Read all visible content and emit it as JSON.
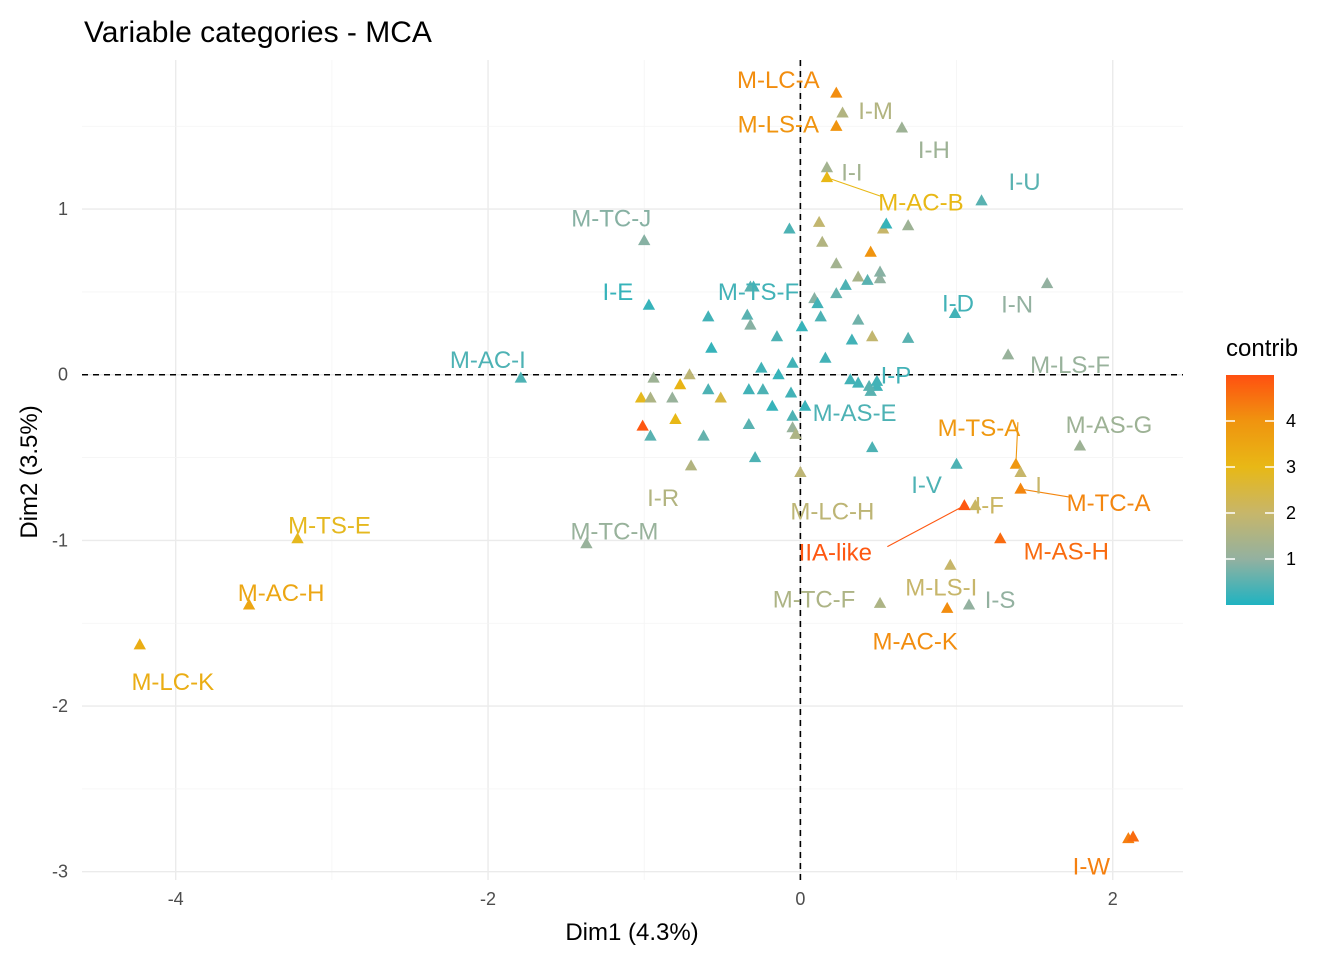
{
  "chart_data": {
    "type": "scatter",
    "title": "Variable categories - MCA",
    "xlabel": "Dim1 (4.3%)",
    "ylabel": "Dim2 (3.5%)",
    "xlim": [
      -4.6,
      2.45
    ],
    "ylim": [
      -3.05,
      1.9
    ],
    "xticks": [
      -4,
      -2,
      0,
      2
    ],
    "yticks": [
      -3,
      -2,
      -1,
      0,
      1
    ],
    "grid": true,
    "reference_lines": [
      0,
      0
    ],
    "marker": "triangle",
    "legend": {
      "title": "contrib",
      "position": "right",
      "ticks": [
        1,
        2,
        3,
        4
      ],
      "range": [
        0,
        5
      ],
      "colors": [
        "#1fb3c1",
        "#93b1a0",
        "#c7b66a",
        "#e8b816",
        "#f0940f",
        "#ff5011"
      ]
    },
    "points": [
      {
        "label": "M-LC-A",
        "x": 0.23,
        "y": 1.7,
        "contrib": 4.1
      },
      {
        "label": "I-M",
        "x": 0.27,
        "y": 1.58,
        "contrib": 1.6
      },
      {
        "label": "M-LS-A",
        "x": 0.23,
        "y": 1.5,
        "contrib": 4.0
      },
      {
        "label": "I-H",
        "x": 0.65,
        "y": 1.49,
        "contrib": 1.2
      },
      {
        "label": "I-I",
        "x": 0.17,
        "y": 1.25,
        "contrib": 1.3
      },
      {
        "label": "M-AC-B",
        "x": 0.17,
        "y": 1.19,
        "contrib": 3.0
      },
      {
        "label": "I-U",
        "x": 1.16,
        "y": 1.05,
        "contrib": 0.5
      },
      {
        "label": "M-TC-J",
        "x": -1.0,
        "y": 0.81,
        "contrib": 0.9
      },
      {
        "label": "M-TS-F",
        "x": -0.3,
        "y": 0.53,
        "contrib": 0.3
      },
      {
        "label": "I-E",
        "x": -0.97,
        "y": 0.42,
        "contrib": 0.2
      },
      {
        "label": "I-D",
        "x": 0.99,
        "y": 0.37,
        "contrib": 0.3
      },
      {
        "label": "I-N",
        "x": 1.58,
        "y": 0.55,
        "contrib": 1.0
      },
      {
        "label": "I-P",
        "x": 0.49,
        "y": -0.07,
        "contrib": 0.3
      },
      {
        "label": "M-AC-I",
        "x": -1.79,
        "y": -0.02,
        "contrib": 0.4
      },
      {
        "label": "M-LS-F",
        "x": 1.33,
        "y": 0.12,
        "contrib": 1.1
      },
      {
        "label": "M-AS-E",
        "x": -0.05,
        "y": -0.25,
        "contrib": 0.4
      },
      {
        "label": "M-TS-A",
        "x": 1.38,
        "y": -0.54,
        "contrib": 3.9
      },
      {
        "label": "M-AS-G",
        "x": 1.79,
        "y": -0.43,
        "contrib": 1.2
      },
      {
        "label": "I",
        "x": 1.41,
        "y": -0.59,
        "contrib": 2.0
      },
      {
        "label": "M-TC-A",
        "x": 1.41,
        "y": -0.69,
        "contrib": 4.2
      },
      {
        "label": "I-F",
        "x": 1.12,
        "y": -0.79,
        "contrib": 2.1
      },
      {
        "label": "I-V",
        "x": 1.0,
        "y": -0.54,
        "contrib": 0.4
      },
      {
        "label": "IIA-like",
        "x": 1.05,
        "y": -0.79,
        "contrib": 4.9
      },
      {
        "label": "M-LS-I",
        "x": 0.96,
        "y": -1.15,
        "contrib": 2.0
      },
      {
        "label": "M-AS-H",
        "x": 1.28,
        "y": -0.99,
        "contrib": 4.6
      },
      {
        "label": "M-LC-H",
        "x": 0.0,
        "y": -0.59,
        "contrib": 1.8
      },
      {
        "label": "I-S",
        "x": 1.08,
        "y": -1.39,
        "contrib": 1.0
      },
      {
        "label": "M-TC-F",
        "x": 0.51,
        "y": -1.38,
        "contrib": 1.5
      },
      {
        "label": "M-AC-K",
        "x": 0.94,
        "y": -1.41,
        "contrib": 4.1
      },
      {
        "label": "I-R",
        "x": -0.7,
        "y": -0.55,
        "contrib": 1.6
      },
      {
        "label": "M-TC-M",
        "x": -1.37,
        "y": -1.02,
        "contrib": 1.1
      },
      {
        "label": "M-TS-E",
        "x": -3.22,
        "y": -0.99,
        "contrib": 2.9
      },
      {
        "label": "M-AC-H",
        "x": -3.53,
        "y": -1.39,
        "contrib": 3.5
      },
      {
        "label": "M-LC-K",
        "x": -4.23,
        "y": -1.63,
        "contrib": 3.3
      },
      {
        "label": "I-W",
        "x": 2.1,
        "y": -2.8,
        "contrib": 4.3
      },
      {
        "label": "",
        "x": 2.13,
        "y": -2.79,
        "contrib": 4.6
      },
      {
        "label": "",
        "x": -0.07,
        "y": 0.88,
        "contrib": 0.4
      },
      {
        "label": "",
        "x": 0.12,
        "y": 0.92,
        "contrib": 1.9
      },
      {
        "label": "",
        "x": 0.14,
        "y": 0.8,
        "contrib": 1.6
      },
      {
        "label": "",
        "x": 0.53,
        "y": 0.88,
        "contrib": 2.0
      },
      {
        "label": "",
        "x": 0.55,
        "y": 0.91,
        "contrib": 0.2
      },
      {
        "label": "",
        "x": 0.69,
        "y": 0.9,
        "contrib": 1.2
      },
      {
        "label": "",
        "x": 0.45,
        "y": 0.74,
        "contrib": 4.0
      },
      {
        "label": "",
        "x": 0.23,
        "y": 0.67,
        "contrib": 1.3
      },
      {
        "label": "",
        "x": 0.37,
        "y": 0.59,
        "contrib": 1.4
      },
      {
        "label": "",
        "x": 0.43,
        "y": 0.57,
        "contrib": 0.5
      },
      {
        "label": "",
        "x": 0.51,
        "y": 0.58,
        "contrib": 1.0
      },
      {
        "label": "",
        "x": 0.51,
        "y": 0.62,
        "contrib": 0.9
      },
      {
        "label": "",
        "x": 0.29,
        "y": 0.54,
        "contrib": 0.4
      },
      {
        "label": "",
        "x": 0.23,
        "y": 0.49,
        "contrib": 0.6
      },
      {
        "label": "",
        "x": 0.09,
        "y": 0.46,
        "contrib": 0.9
      },
      {
        "label": "",
        "x": 0.11,
        "y": 0.43,
        "contrib": 0.3
      },
      {
        "label": "",
        "x": -0.32,
        "y": 0.53,
        "contrib": 0.5
      },
      {
        "label": "",
        "x": -0.59,
        "y": 0.35,
        "contrib": 0.3
      },
      {
        "label": "",
        "x": -0.34,
        "y": 0.36,
        "contrib": 0.5
      },
      {
        "label": "",
        "x": 0.01,
        "y": 0.29,
        "contrib": 0.2
      },
      {
        "label": "",
        "x": 0.13,
        "y": 0.35,
        "contrib": 0.4
      },
      {
        "label": "",
        "x": 0.37,
        "y": 0.33,
        "contrib": 0.7
      },
      {
        "label": "",
        "x": 0.46,
        "y": 0.23,
        "contrib": 1.9
      },
      {
        "label": "",
        "x": 0.69,
        "y": 0.22,
        "contrib": 0.5
      },
      {
        "label": "",
        "x": 0.33,
        "y": 0.21,
        "contrib": 0.3
      },
      {
        "label": "",
        "x": -0.15,
        "y": 0.23,
        "contrib": 0.4
      },
      {
        "label": "",
        "x": -0.32,
        "y": 0.3,
        "contrib": 0.9
      },
      {
        "label": "",
        "x": -0.57,
        "y": 0.16,
        "contrib": 0.2
      },
      {
        "label": "",
        "x": 0.16,
        "y": 0.1,
        "contrib": 0.3
      },
      {
        "label": "",
        "x": -0.25,
        "y": 0.04,
        "contrib": 0.3
      },
      {
        "label": "",
        "x": -0.05,
        "y": 0.07,
        "contrib": 0.3
      },
      {
        "label": "",
        "x": -0.14,
        "y": 0.0,
        "contrib": 0.2
      },
      {
        "label": "",
        "x": -0.94,
        "y": -0.02,
        "contrib": 1.2
      },
      {
        "label": "",
        "x": -0.71,
        "y": 0.0,
        "contrib": 1.8
      },
      {
        "label": "",
        "x": -0.77,
        "y": -0.06,
        "contrib": 3.1
      },
      {
        "label": "",
        "x": -1.02,
        "y": -0.14,
        "contrib": 2.9
      },
      {
        "label": "",
        "x": -0.96,
        "y": -0.14,
        "contrib": 1.5
      },
      {
        "label": "",
        "x": -0.82,
        "y": -0.14,
        "contrib": 1.1
      },
      {
        "label": "",
        "x": -0.59,
        "y": -0.09,
        "contrib": 0.4
      },
      {
        "label": "",
        "x": -0.51,
        "y": -0.14,
        "contrib": 2.5
      },
      {
        "label": "",
        "x": -0.33,
        "y": -0.09,
        "contrib": 0.3
      },
      {
        "label": "",
        "x": -0.24,
        "y": -0.09,
        "contrib": 0.4
      },
      {
        "label": "",
        "x": -0.06,
        "y": -0.11,
        "contrib": 0.3
      },
      {
        "label": "",
        "x": -0.18,
        "y": -0.19,
        "contrib": 0.2
      },
      {
        "label": "",
        "x": 0.03,
        "y": -0.19,
        "contrib": 0.2
      },
      {
        "label": "",
        "x": 0.32,
        "y": -0.03,
        "contrib": 0.3
      },
      {
        "label": "",
        "x": 0.37,
        "y": -0.05,
        "contrib": 0.3
      },
      {
        "label": "",
        "x": 0.44,
        "y": -0.07,
        "contrib": 0.5
      },
      {
        "label": "",
        "x": 0.49,
        "y": -0.04,
        "contrib": 0.3
      },
      {
        "label": "",
        "x": 0.45,
        "y": -0.1,
        "contrib": 0.5
      },
      {
        "label": "",
        "x": 0.46,
        "y": -0.44,
        "contrib": 0.4
      },
      {
        "label": "",
        "x": -0.8,
        "y": -0.27,
        "contrib": 3.0
      },
      {
        "label": "",
        "x": -1.01,
        "y": -0.31,
        "contrib": 4.9
      },
      {
        "label": "",
        "x": -0.96,
        "y": -0.37,
        "contrib": 0.5
      },
      {
        "label": "",
        "x": -0.62,
        "y": -0.37,
        "contrib": 0.6
      },
      {
        "label": "",
        "x": -0.33,
        "y": -0.3,
        "contrib": 0.5
      },
      {
        "label": "",
        "x": -0.05,
        "y": -0.32,
        "contrib": 1.1
      },
      {
        "label": "",
        "x": -0.03,
        "y": -0.36,
        "contrib": 1.5
      },
      {
        "label": "",
        "x": -0.29,
        "y": -0.5,
        "contrib": 0.4
      }
    ]
  }
}
